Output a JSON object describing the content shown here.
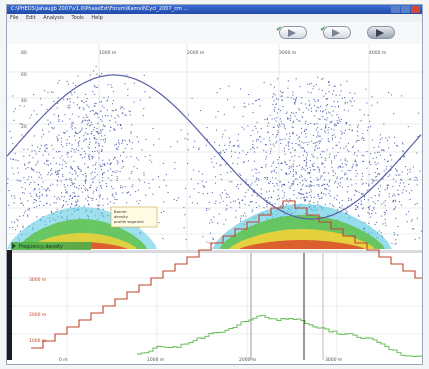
{
  "window": {
    "title": "C:\\PHEDS\\Jahaugb 2007\\v1.0\\PhaseEst\\Forum\\Kamvil\\Cycl_2007_cm ...",
    "menu": [
      "File",
      "Edit",
      "Analysis",
      "Tools",
      "Help"
    ]
  },
  "toolbar": {
    "buttons": [
      {
        "name": "previous",
        "icon": "arrow-right-icon"
      },
      {
        "name": "next",
        "icon": "arrow-right-icon"
      },
      {
        "name": "play",
        "icon": "arrow-right-icon"
      }
    ]
  },
  "plot": {
    "y_ticks_upper": [
      "80",
      "60",
      "40",
      "20"
    ],
    "x_ticks_upper": [
      "1000 m",
      "2000 m",
      "3000 m",
      "4000 m"
    ],
    "tooltip": [
      "Barrier",
      "density",
      "profile segment"
    ],
    "legend_label": "Frequency density",
    "y_ticks_lower": [
      "3000 m",
      "2000 m",
      "1000 m"
    ],
    "x_ticks_lower": [
      "0 m",
      "1000 m",
      "2000 m",
      "3000 m"
    ],
    "colors": {
      "scatter": "#2b3d9c",
      "band_cyan": "#4fc6e0",
      "band_green": "#5fc24a",
      "band_yellow": "#f3d23a",
      "band_red": "#d9422b",
      "curve": "#5a5fa8",
      "step_red": "#c0442a",
      "step_green": "#58b846",
      "grid": "#d7d9dc"
    }
  }
}
